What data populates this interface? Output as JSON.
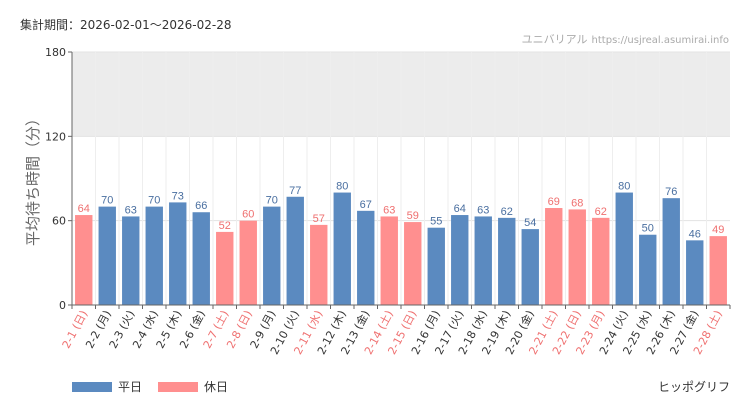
{
  "header": {
    "period_label": "集計期間：",
    "period_value": "2026-02-01～2026-02-28",
    "source_name": "ユニバリアル",
    "source_site": "https://usjreal.asumirai.info"
  },
  "colors": {
    "weekday": "#5b8ac0",
    "holiday": "#ff8f8f",
    "weekday_text": "#4a6fa0",
    "holiday_text": "#ef7070",
    "band": "#ececec",
    "grid": "#e3e3e3",
    "axis": "#666666"
  },
  "chart_data": {
    "type": "bar",
    "title": "",
    "ylabel": "平均待ち時間（分）",
    "xlabel": "",
    "ylim": [
      0,
      180
    ],
    "yticks": [
      0,
      60,
      120,
      180
    ],
    "shaded_band": [
      120,
      180
    ],
    "grid": true,
    "legend": "bottom-left",
    "series": [
      {
        "name": "平日",
        "key": "weekday"
      },
      {
        "name": "休日",
        "key": "holiday"
      }
    ],
    "categories": [
      "2-1 (日)",
      "2-2 (月)",
      "2-3 (火)",
      "2-4 (水)",
      "2-5 (木)",
      "2-6 (金)",
      "2-7 (土)",
      "2-8 (日)",
      "2-9 (月)",
      "2-10 (火)",
      "2-11 (水)",
      "2-12 (木)",
      "2-13 (金)",
      "2-14 (土)",
      "2-15 (日)",
      "2-16 (月)",
      "2-17 (火)",
      "2-18 (水)",
      "2-19 (木)",
      "2-20 (金)",
      "2-21 (土)",
      "2-22 (日)",
      "2-23 (月)",
      "2-24 (火)",
      "2-25 (水)",
      "2-26 (木)",
      "2-27 (金)",
      "2-28 (土)"
    ],
    "values": [
      64,
      70,
      63,
      70,
      73,
      66,
      52,
      60,
      70,
      77,
      57,
      80,
      67,
      63,
      59,
      55,
      64,
      63,
      62,
      54,
      69,
      68,
      62,
      80,
      50,
      76,
      46,
      49
    ],
    "day_type": [
      "holiday",
      "weekday",
      "weekday",
      "weekday",
      "weekday",
      "weekday",
      "holiday",
      "holiday",
      "weekday",
      "weekday",
      "holiday",
      "weekday",
      "weekday",
      "holiday",
      "holiday",
      "weekday",
      "weekday",
      "weekday",
      "weekday",
      "weekday",
      "holiday",
      "holiday",
      "holiday",
      "weekday",
      "weekday",
      "weekday",
      "weekday",
      "holiday"
    ]
  },
  "legend": {
    "weekday_label": "平日",
    "holiday_label": "休日"
  },
  "footer": {
    "attraction": "ヒッポグリフ"
  }
}
